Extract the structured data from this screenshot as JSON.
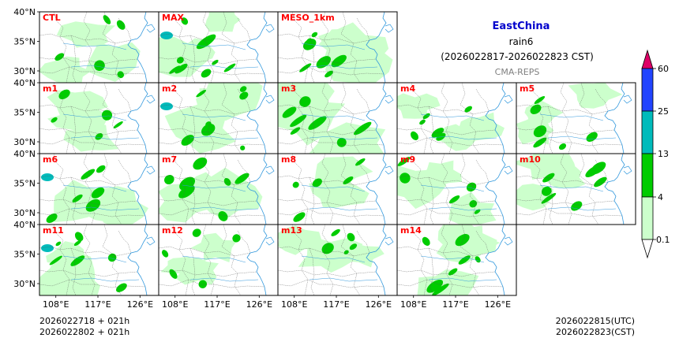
{
  "header": {
    "region": "EastChina",
    "variable": "rain6",
    "period": "(2026022817-2026022823 CST)",
    "system": "CMA-REPS"
  },
  "axes": {
    "lat_labels": [
      "40°N",
      "35°N",
      "30°N"
    ],
    "lat_values": [
      40,
      35,
      30
    ],
    "lon_labels": [
      "108°E",
      "117°E",
      "126°E"
    ],
    "lon_values": [
      108,
      117,
      126
    ]
  },
  "panels": [
    [
      "CTL",
      "MAX",
      "MESO_1km"
    ],
    [
      "m1",
      "m2",
      "m3",
      "m4",
      "m5"
    ],
    [
      "m6",
      "m7",
      "m8",
      "m9",
      "m10"
    ],
    [
      "m11",
      "m12",
      "m13",
      "m14"
    ]
  ],
  "footer": {
    "left_line1": "2026022718  +  021h",
    "left_line2": "2026022802  +  021h",
    "right_line1": "2026022815(UTC)",
    "right_line2": "2026022823(CST)"
  },
  "colorbar": {
    "ticks": [
      "0.1",
      "4",
      "13",
      "25",
      "60"
    ],
    "colors": [
      "#ccffcc",
      "#00cc00",
      "#00bbbb",
      "#2244ff",
      "#dd0066"
    ],
    "label_color": "#ff0000",
    "title_color": "#0000cc",
    "subtitle_color": "#808080"
  },
  "map_colors": {
    "light_rain": "#ccffcc",
    "medium_rain": "#00cc00",
    "heavy_rain": "#00bbbb",
    "coast": "#3399dd",
    "border": "#555555"
  }
}
